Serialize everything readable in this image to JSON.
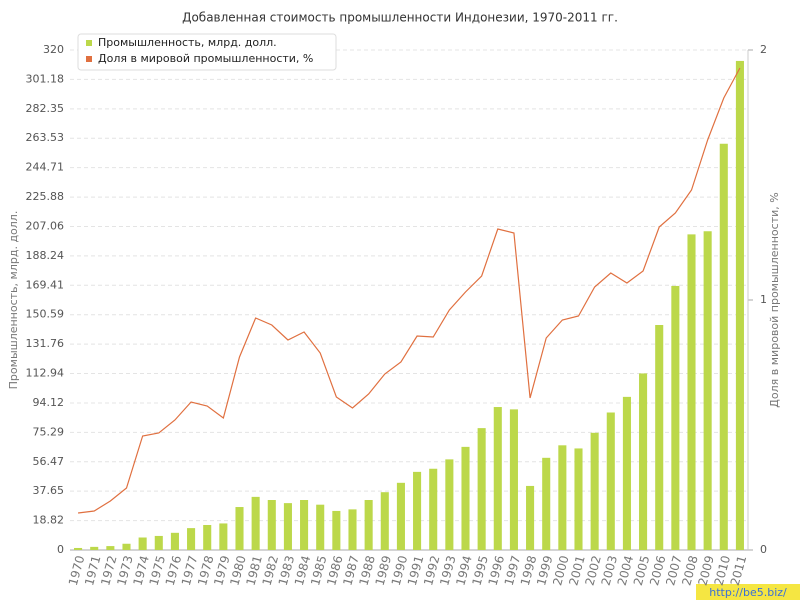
{
  "chart_data": {
    "type": "bar_line",
    "title": "Добавленная стоимость промышленности Индонезии, 1970-2011 гг.",
    "y_label": "Промышленность, млрд. долл.",
    "y2_label": "Доля в мировой промышленности, %",
    "watermark": "http://be5.biz/",
    "categories": [
      "1970",
      "1971",
      "1972",
      "1973",
      "1974",
      "1975",
      "1976",
      "1977",
      "1978",
      "1979",
      "1980",
      "1981",
      "1982",
      "1983",
      "1984",
      "1985",
      "1986",
      "1987",
      "1988",
      "1989",
      "1990",
      "1991",
      "1992",
      "1993",
      "1994",
      "1995",
      "1996",
      "1997",
      "1998",
      "1999",
      "2000",
      "2001",
      "2002",
      "2003",
      "2004",
      "2005",
      "2006",
      "2007",
      "2008",
      "2009",
      "2010",
      "2011"
    ],
    "series": [
      {
        "name": "Промышленность, млрд. долл.",
        "color": "#bcd84a",
        "kind": "bar",
        "values": [
          1.3,
          2,
          2.5,
          4,
          8,
          9,
          11,
          14,
          16,
          17,
          27.5,
          34,
          32,
          30,
          32,
          29,
          25,
          26,
          32,
          37,
          43,
          50,
          52,
          58,
          66,
          78,
          91.5,
          90,
          41,
          59,
          67,
          65,
          75,
          88,
          98,
          113,
          144,
          169,
          202,
          204,
          260,
          313
        ]
      },
      {
        "name": "Доля в мировой промышленности, %",
        "color": "#e07040",
        "kind": "line",
        "axis": "y2",
        "values": [
          0.148,
          0.156,
          0.196,
          0.248,
          0.456,
          0.468,
          0.52,
          0.592,
          0.576,
          0.528,
          0.772,
          0.928,
          0.9,
          0.84,
          0.872,
          0.788,
          0.612,
          0.568,
          0.624,
          0.704,
          0.752,
          0.856,
          0.852,
          0.96,
          1.032,
          1.096,
          1.284,
          1.268,
          0.608,
          0.848,
          0.92,
          0.936,
          1.052,
          1.108,
          1.068,
          1.116,
          1.292,
          1.348,
          1.44,
          1.64,
          1.808,
          1.928
        ]
      }
    ],
    "ylim": [
      0,
      320
    ],
    "yticks": [
      0,
      18.82,
      37.65,
      56.47,
      75.29,
      94.12,
      112.94,
      131.76,
      150.59,
      169.41,
      188.24,
      207.06,
      225.88,
      244.71,
      263.53,
      282.35,
      301.18,
      320
    ],
    "y2lim": [
      0,
      2
    ],
    "y2ticks": [
      0,
      1,
      2
    ],
    "grid": true,
    "legend": "top-left"
  }
}
